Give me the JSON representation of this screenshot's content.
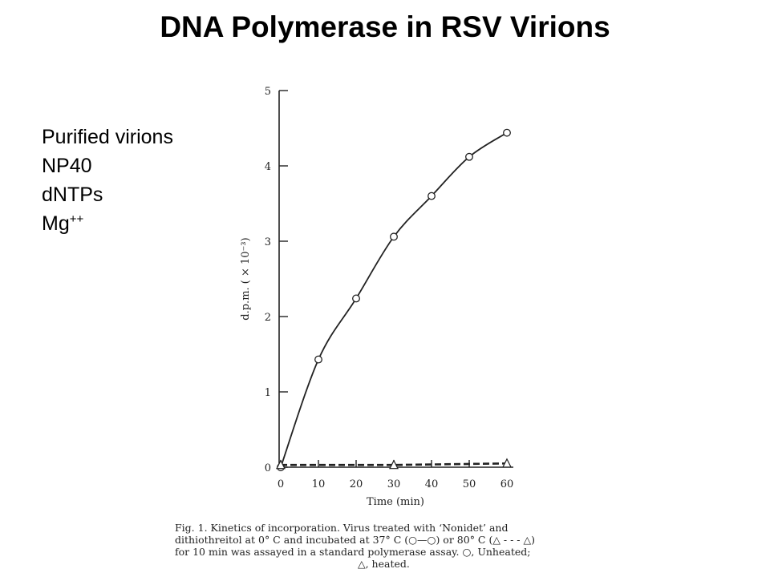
{
  "slide": {
    "title": "DNA Polymerase in RSV Virions",
    "conditions": [
      "Purified virions",
      "NP40",
      "dNTPs"
    ],
    "mg_base": "Mg",
    "mg_sup": "++"
  },
  "chart_data": {
    "type": "line",
    "xlabel": "Time (min)",
    "ylabel": "d.p.m. ( × 10⁻³)",
    "xlim": [
      0,
      60
    ],
    "ylim": [
      0,
      5
    ],
    "x_ticks": [
      0,
      10,
      20,
      30,
      40,
      50,
      60
    ],
    "y_ticks": [
      0,
      1,
      2,
      3,
      4,
      5
    ],
    "grid": false,
    "legend": "none",
    "series": [
      {
        "marker": "circle",
        "line": "solid",
        "points": [
          [
            0,
            0
          ],
          [
            10,
            1.43
          ],
          [
            20,
            2.24
          ],
          [
            30,
            3.06
          ],
          [
            40,
            3.6
          ],
          [
            50,
            4.12
          ],
          [
            60,
            4.44
          ]
        ]
      },
      {
        "marker": "triangle",
        "line": "dashed",
        "points": [
          [
            0,
            0.03
          ],
          [
            30,
            0.03
          ],
          [
            60,
            0.05
          ]
        ]
      }
    ]
  },
  "caption": {
    "lines": [
      "Fig. 1.   Kinetics of incorporation.   Virus treated with ‘Nonidet’ and",
      "dithiothreitol at 0° C and incubated at 37° C (○—○) or 80° C (△ - - - △)",
      "for 10 min was assayed in a standard polymerase assay.   ○, Unheated;",
      "△, heated."
    ]
  }
}
